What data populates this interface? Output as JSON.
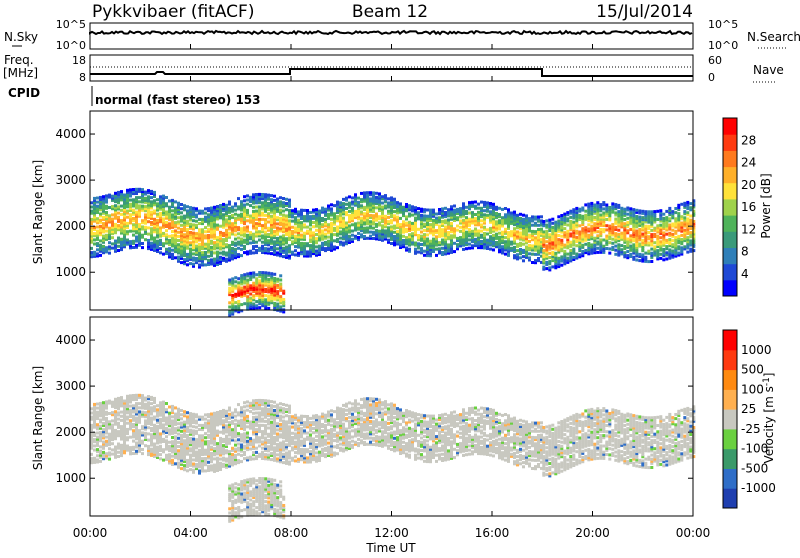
{
  "header": {
    "station": "Pykkvibaer (fitACF)",
    "beam": "Beam 12",
    "date": "15/Jul/2014"
  },
  "strips": {
    "nsky_label": "N.Sky",
    "nsky_ticks": [
      "10^5",
      "10^0"
    ],
    "nsearch_label": "N.Search",
    "nsearch_ticks": [
      "10^5",
      "10^0"
    ],
    "freq_label_1": "Freq.",
    "freq_label_2": "[MHz]",
    "freq_ticks": [
      "18",
      "8"
    ],
    "nave_label": "Nave",
    "nave_ticks": [
      "60",
      "0"
    ],
    "cpid_label": "CPID",
    "cpid_text": "normal (fast stereo) 153"
  },
  "chart_data": [
    {
      "type": "heatmap",
      "title": "",
      "xlabel": "Time UT",
      "ylabel": "Slant Range [km]",
      "xlim": [
        "00:00",
        "24:00"
      ],
      "ylim": [
        180,
        4500
      ],
      "y_ticks": [
        "4000",
        "3000",
        "2000",
        "1000"
      ],
      "x_ticks": [
        "00:00",
        "04:00",
        "08:00",
        "12:00",
        "16:00",
        "20:00",
        "00:00"
      ],
      "colorbar": {
        "label": "Power [dB]",
        "ticks": [
          "28",
          "24",
          "20",
          "16",
          "12",
          "8",
          "4"
        ],
        "range": [
          0,
          30
        ],
        "colors": [
          "#0000ff",
          "#1f49d6",
          "#2f7fb8",
          "#3a9a7a",
          "#4fb35a",
          "#9fd24b",
          "#ffe23a",
          "#ffb02a",
          "#ff7a1e",
          "#ff3a10",
          "#ff0000"
        ]
      },
      "layers_km": [
        {
          "from": "00:00",
          "to": "08:00",
          "range_low": 1400,
          "range_high": 2700,
          "peak_db": 22
        },
        {
          "from": "05:30",
          "to": "07:45",
          "range_low": 200,
          "range_high": 1000,
          "peak_db": 28
        },
        {
          "from": "08:00",
          "to": "18:00",
          "range_low": 1500,
          "range_high": 2500,
          "peak_db": 20
        },
        {
          "from": "18:00",
          "to": "24:00",
          "range_low": 1300,
          "range_high": 2400,
          "peak_db": 24
        }
      ]
    },
    {
      "type": "heatmap",
      "title": "",
      "xlabel": "Time UT",
      "ylabel": "Slant Range [km]",
      "xlim": [
        "00:00",
        "24:00"
      ],
      "ylim": [
        180,
        4500
      ],
      "y_ticks": [
        "4000",
        "3000",
        "2000",
        "1000"
      ],
      "x_ticks": [
        "00:00",
        "04:00",
        "08:00",
        "12:00",
        "16:00",
        "20:00",
        "00:00"
      ],
      "colorbar": {
        "label": "Velocity [m s^-1]",
        "ticks": [
          "1000",
          "500",
          "100",
          "25",
          "-25",
          "-100",
          "-500",
          "-1000"
        ],
        "colors": [
          "#1f3fb0",
          "#2f6ec8",
          "#3a9a6a",
          "#6ad040",
          "#c8c8c0",
          "#ffb050",
          "#ff8a10",
          "#ff3a10",
          "#ff0000"
        ]
      },
      "dominant_velocity": "-25 to 25"
    }
  ],
  "time_axis_label": "Time UT"
}
